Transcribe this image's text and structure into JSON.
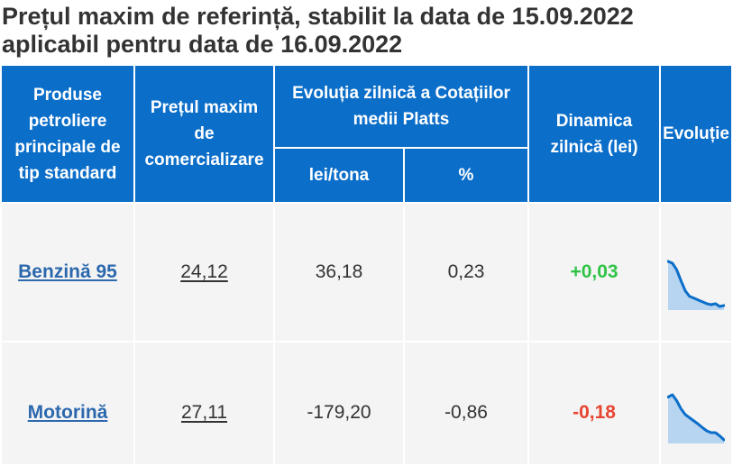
{
  "title": {
    "line1": "Prețul maxim de referință, stabilit la data de 15.09.2022",
    "line2": "aplicabil pentru data de 16.09.2022"
  },
  "table": {
    "headers": {
      "product": "Produse petroliere principale de tip standard",
      "max_price": "Prețul maxim de comercializare",
      "platts_group": "Evoluția zilnică a Cotațiilor medii Platts",
      "platts_lei_per_ton": "lei/tona",
      "platts_percent": "%",
      "daily_dynamics": "Dinamica zilnică (lei)",
      "evolution": "Evoluție"
    },
    "rows": [
      {
        "product": "Benzină 95",
        "max_price": "24,12",
        "platts_lei_per_ton": "36,18",
        "platts_percent": "0,23",
        "daily_dynamics": "+0,03",
        "daily_dynamics_color": "#2fc447",
        "evolution_trend": [
          98,
          94,
          80,
          56,
          34,
          22,
          18,
          14,
          10,
          6,
          4,
          6,
          0,
          2
        ]
      },
      {
        "product": "Motorină",
        "max_price": "27,11",
        "platts_lei_per_ton": "-179,20",
        "platts_percent": "-0,86",
        "daily_dynamics": "-0,18",
        "daily_dynamics_color": "#e84531",
        "evolution_trend": [
          95,
          100,
          87,
          69,
          56,
          49,
          42,
          35,
          27,
          20,
          16,
          16,
          9,
          0
        ]
      }
    ]
  },
  "colors": {
    "header_bg": "#0b6ec9",
    "header_text": "#ffffff",
    "body_bg": "#f4f4f4",
    "body_text": "#333333",
    "title_text": "#333333",
    "product_link": "#2c68ad",
    "sparkline_line": "#0b6ec9",
    "sparkline_fill": "#b7d4f1"
  }
}
